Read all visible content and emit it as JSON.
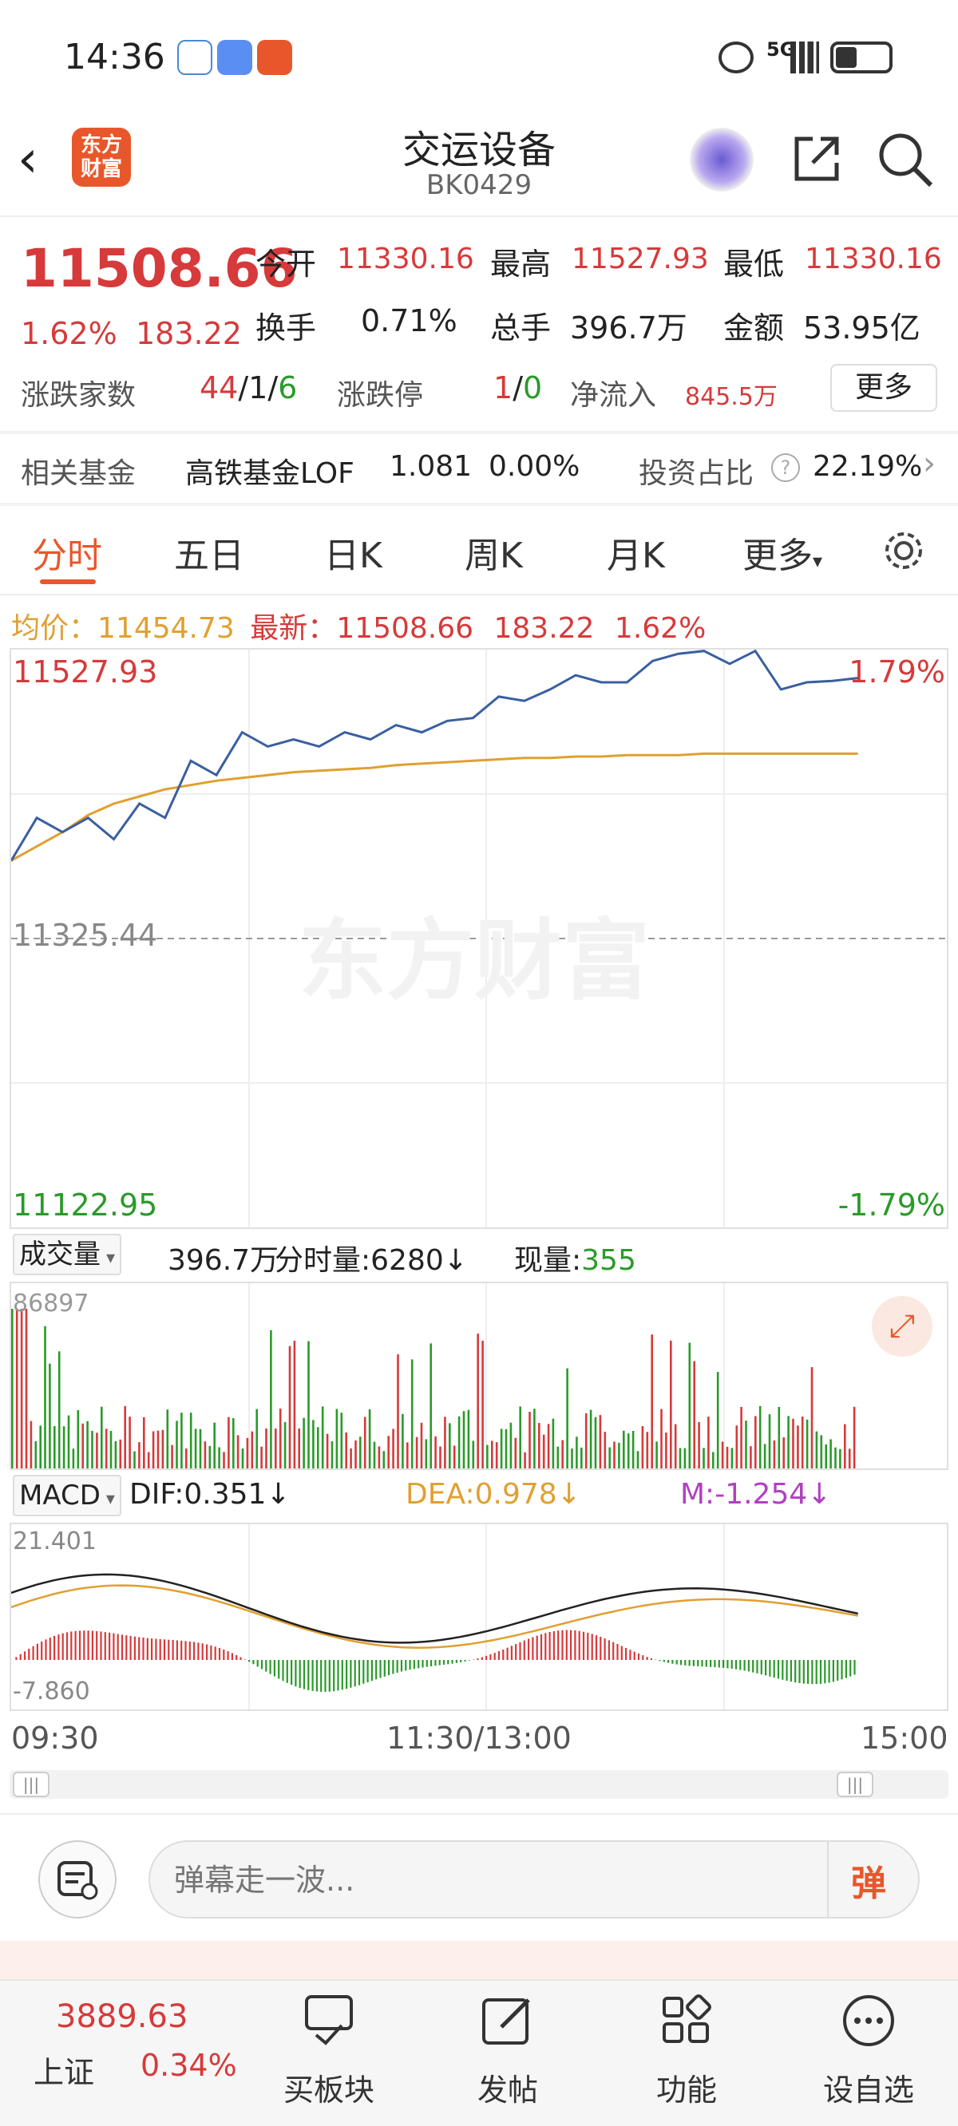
{
  "status": {
    "time": "14:36",
    "net": "5G"
  },
  "header": {
    "title": "交运设备",
    "code": "BK0429",
    "logo": "东方财富"
  },
  "quote": {
    "price": "11508.66",
    "pct": "1.62%",
    "chg": "183.22",
    "open_label": "今开",
    "open": "11330.16",
    "high_label": "最高",
    "high": "11527.93",
    "low_label": "最低",
    "low": "11330.16",
    "turnover_label": "换手",
    "turnover": "0.71%",
    "volume_label": "总手",
    "volume": "396.7万",
    "amount_label": "金额",
    "amount": "53.95亿",
    "updown_label": "涨跌家数",
    "up": "44",
    "flat": "1",
    "down": "6",
    "sep": "/",
    "limit_label": "涨跌停",
    "limit_up": "1",
    "limit_down": "0",
    "inflow_label": "净流入",
    "inflow": "845.5万",
    "more_btn": "更多"
  },
  "fund": {
    "label": "相关基金",
    "name": "高铁基金LOF",
    "price": "1.081",
    "pct": "0.00%",
    "ratio_label": "投资占比",
    "ratio": "22.19%"
  },
  "tabs": [
    "分时",
    "五日",
    "日K",
    "周K",
    "月K",
    "更多"
  ],
  "info": {
    "avg_label": "均价：",
    "avg": "11454.73",
    "latest_label": "最新：",
    "latest": "11508.66",
    "chg": "183.22",
    "pct": "1.62%"
  },
  "chart_labels": {
    "top": "11527.93",
    "top_pct": "1.79%",
    "mid": "11325.44",
    "bottom": "11122.95",
    "bottom_pct": "-1.79%",
    "watermark": "东方财富"
  },
  "volume": {
    "label": "成交量",
    "total": "396.7万",
    "fs_label": "分时量:",
    "fs": "6280",
    "cur_label": "现量:",
    "cur": "355",
    "max": "86897"
  },
  "macd": {
    "label": "MACD",
    "dif_label": "DIF:",
    "dif": "0.351",
    "dea_label": "DEA:",
    "dea": "0.978",
    "m_label": "M:",
    "m": "-1.254",
    "max": "21.401",
    "min": "-7.860"
  },
  "time_axis": {
    "start": "09:30",
    "mid": "11:30/13:00",
    "end": "15:00"
  },
  "comment": {
    "placeholder": "弹幕走一波...",
    "danmu_btn": "弹"
  },
  "bottom": {
    "index_value": "3889.63",
    "index_name": "上证",
    "index_pct": "0.34%",
    "items": [
      "买板块",
      "发帖",
      "功能",
      "设自选"
    ]
  },
  "colors": {
    "up": "#d63a3a",
    "down": "#2a9a2a",
    "price_line": "#3a5fa0",
    "avg_line": "#e0a030",
    "accent": "#e8572b"
  },
  "chart_data": {
    "type": "line",
    "ylim": [
      11122.95,
      11527.93
    ],
    "price": [
      11380,
      11410,
      11400,
      11410,
      11395,
      11420,
      11410,
      11450,
      11440,
      11470,
      11460,
      11465,
      11460,
      11470,
      11465,
      11475,
      11470,
      11478,
      11480,
      11495,
      11492,
      11500,
      11510,
      11505,
      11505,
      11520,
      11525,
      11527,
      11518,
      11527,
      11500,
      11505,
      11506,
      11508
    ],
    "avg": [
      11380,
      11390,
      11400,
      11412,
      11420,
      11425,
      11430,
      11433,
      11436,
      11438,
      11440,
      11442,
      11443,
      11444,
      11445,
      11447,
      11448,
      11449,
      11450,
      11451,
      11452,
      11452,
      11453,
      11453,
      11454,
      11454,
      11454,
      11455,
      11455,
      11455,
      11455,
      11455,
      11455,
      11455
    ]
  }
}
